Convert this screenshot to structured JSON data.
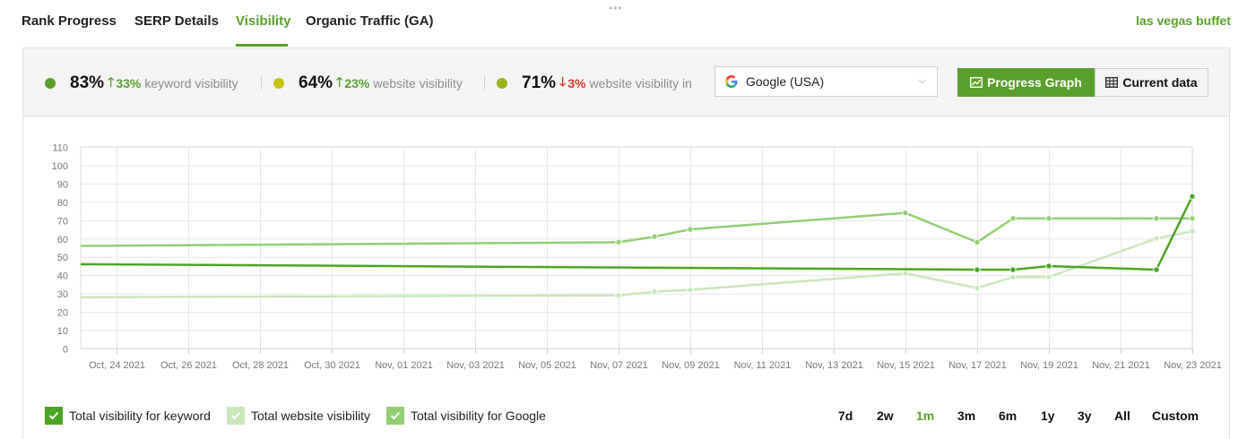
{
  "tabs": [
    {
      "label": "Rank Progress",
      "active": false
    },
    {
      "label": "SERP Details",
      "active": false
    },
    {
      "label": "Visibility",
      "active": true
    },
    {
      "label": "Organic Traffic (GA)",
      "active": false
    }
  ],
  "project_name": "las vegas buffet",
  "summary": {
    "metrics": [
      {
        "percent": "83%",
        "direction": "up",
        "change": "33%",
        "label": "keyword visibility",
        "dot_color": "#5aa02c"
      },
      {
        "percent": "64%",
        "direction": "up",
        "change": "23%",
        "label": "website visibility",
        "dot_color": "#c4c20f"
      },
      {
        "percent": "71%",
        "direction": "down",
        "change": "3%",
        "label": "website visibility in",
        "dot_color": "#98b31c"
      }
    ],
    "search_engine": {
      "selected": "Google (USA)",
      "icon": "google-icon"
    },
    "view_buttons": {
      "progress_graph": "Progress Graph",
      "current_data": "Current data"
    }
  },
  "colors": {
    "accent": "#5aa02c",
    "keyword_line": "#4aa524",
    "google_line": "#92cf73",
    "website_line": "#c9e8bc",
    "down": "#e0352b"
  },
  "chart_data": {
    "type": "line",
    "ylim": [
      0,
      110
    ],
    "yticks": [
      0,
      10,
      20,
      30,
      40,
      50,
      60,
      70,
      80,
      90,
      100,
      110
    ],
    "x_range": [
      "2021-10-23",
      "2021-11-23"
    ],
    "xtick_labels": [
      "Oct, 24 2021",
      "Oct, 26 2021",
      "Oct, 28 2021",
      "Oct, 30 2021",
      "Nov, 01 2021",
      "Nov, 03 2021",
      "Nov, 05 2021",
      "Nov, 07 2021",
      "Nov, 09 2021",
      "Nov, 11 2021",
      "Nov, 13 2021",
      "Nov, 15 2021",
      "Nov, 17 2021",
      "Nov, 19 2021",
      "Nov, 21 2021",
      "Nov, 23 2021"
    ],
    "grid": true,
    "legend_position": "bottom-left",
    "series": [
      {
        "name": "Total visibility for Google",
        "color": "#92cf73",
        "width": 2.5,
        "points": [
          [
            "2021-10-23",
            56
          ],
          [
            "2021-11-07",
            58
          ],
          [
            "2021-11-08",
            61
          ],
          [
            "2021-11-09",
            65
          ],
          [
            "2021-11-15",
            74
          ],
          [
            "2021-11-17",
            58
          ],
          [
            "2021-11-18",
            71
          ],
          [
            "2021-11-19",
            71
          ],
          [
            "2021-11-22",
            71
          ],
          [
            "2021-11-23",
            71
          ]
        ]
      },
      {
        "name": "Total website visibility",
        "color": "#c9e8bc",
        "width": 2.5,
        "points": [
          [
            "2021-10-23",
            28
          ],
          [
            "2021-11-07",
            29
          ],
          [
            "2021-11-08",
            31
          ],
          [
            "2021-11-09",
            32
          ],
          [
            "2021-11-15",
            41
          ],
          [
            "2021-11-17",
            33
          ],
          [
            "2021-11-18",
            39
          ],
          [
            "2021-11-19",
            39
          ],
          [
            "2021-11-22",
            60
          ],
          [
            "2021-11-23",
            64
          ]
        ]
      },
      {
        "name": "Total visibility for keyword",
        "color": "#4aa524",
        "width": 2.5,
        "points": [
          [
            "2021-10-23",
            46
          ],
          [
            "2021-11-17",
            43
          ],
          [
            "2021-11-18",
            43
          ],
          [
            "2021-11-19",
            45
          ],
          [
            "2021-11-22",
            43
          ],
          [
            "2021-11-23",
            83
          ]
        ]
      }
    ]
  },
  "legend": [
    {
      "label": "Total visibility for keyword",
      "color": "#4aa524"
    },
    {
      "label": "Total website visibility",
      "color": "#c9e8bc"
    },
    {
      "label": "Total visibility for Google",
      "color": "#92cf73"
    }
  ],
  "ranges": [
    {
      "label": "7d",
      "active": false
    },
    {
      "label": "2w",
      "active": false
    },
    {
      "label": "1m",
      "active": true
    },
    {
      "label": "3m",
      "active": false
    },
    {
      "label": "6m",
      "active": false
    },
    {
      "label": "1y",
      "active": false
    },
    {
      "label": "3y",
      "active": false
    },
    {
      "label": "All",
      "active": false
    },
    {
      "label": "Custom",
      "active": false
    }
  ]
}
